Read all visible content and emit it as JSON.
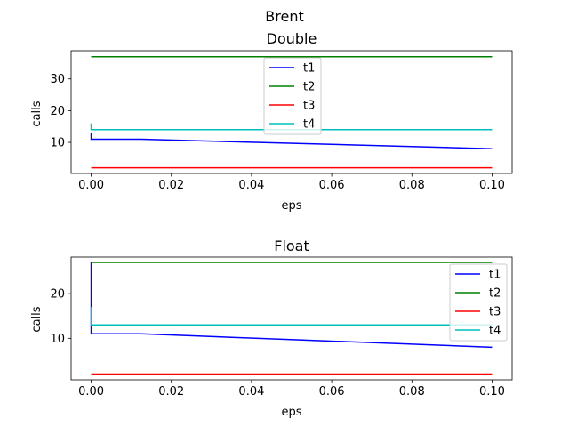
{
  "figure": {
    "suptitle": "Brent"
  },
  "chart_data": [
    {
      "type": "line",
      "title": "Double",
      "xlabel": "eps",
      "ylabel": "calls",
      "xlim": [
        -0.005,
        0.105
      ],
      "ylim": [
        0.2,
        38.9
      ],
      "xticks": [
        0.0,
        0.02,
        0.04,
        0.06,
        0.08,
        0.1
      ],
      "xtick_labels": [
        "0.00",
        "0.02",
        "0.04",
        "0.06",
        "0.08",
        "0.10"
      ],
      "yticks": [
        10,
        20,
        30
      ],
      "ytick_labels": [
        "10",
        "20",
        "30"
      ],
      "grid": false,
      "legend": "top-center",
      "series": [
        {
          "name": "t1",
          "color": "#0000ff",
          "x": [
            0.0,
            0.0,
            0.0,
            0.0125,
            0.1
          ],
          "y": [
            13,
            12,
            11,
            11,
            8
          ]
        },
        {
          "name": "t2",
          "color": "#008000",
          "x": [
            0.0,
            0.1
          ],
          "y": [
            37,
            37
          ]
        },
        {
          "name": "t3",
          "color": "#ff0000",
          "x": [
            0.0,
            0.1
          ],
          "y": [
            2,
            2
          ]
        },
        {
          "name": "t4",
          "color": "#00bfbf",
          "x": [
            0.0,
            0.0,
            0.0,
            0.1
          ],
          "y": [
            16,
            14,
            14,
            14
          ]
        }
      ]
    },
    {
      "type": "line",
      "title": "Float",
      "xlabel": "eps",
      "ylabel": "calls",
      "xlim": [
        -0.005,
        0.105
      ],
      "ylim": [
        0.7,
        28.2
      ],
      "xticks": [
        0.0,
        0.02,
        0.04,
        0.06,
        0.08,
        0.1
      ],
      "xtick_labels": [
        "0.00",
        "0.02",
        "0.04",
        "0.06",
        "0.08",
        "0.10"
      ],
      "yticks": [
        10,
        20
      ],
      "ytick_labels": [
        "10",
        "20"
      ],
      "grid": false,
      "legend": "top-right",
      "series": [
        {
          "name": "t1",
          "color": "#0000ff",
          "x": [
            0.0,
            0.0,
            0.0,
            0.0125,
            0.1
          ],
          "y": [
            27,
            12,
            11,
            11,
            8
          ]
        },
        {
          "name": "t2",
          "color": "#008000",
          "x": [
            0.0,
            0.1
          ],
          "y": [
            27,
            27
          ]
        },
        {
          "name": "t3",
          "color": "#ff0000",
          "x": [
            0.0,
            0.1
          ],
          "y": [
            2,
            2
          ]
        },
        {
          "name": "t4",
          "color": "#00bfbf",
          "x": [
            0.0,
            0.0,
            0.0,
            0.1
          ],
          "y": [
            17,
            13,
            13,
            13
          ]
        }
      ]
    }
  ]
}
